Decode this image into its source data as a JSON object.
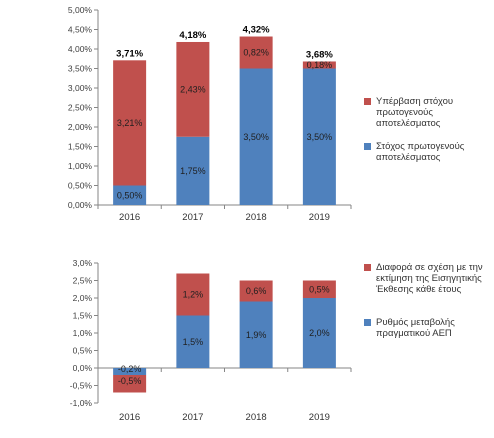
{
  "chart_data": [
    {
      "type": "bar",
      "stacked": true,
      "categories": [
        "2016",
        "2017",
        "2018",
        "2019"
      ],
      "series": [
        {
          "name": "Στόχος πρωτογενούς αποτελέσματος",
          "color": "#4f81bd",
          "values": [
            0.5,
            1.75,
            3.5,
            3.5
          ],
          "labels": [
            "0,50%",
            "1,75%",
            "3,50%",
            "3,50%"
          ]
        },
        {
          "name": "Υπέρβαση στόχου πρωτογενούς αποτελέσματος",
          "color": "#c0504d",
          "values": [
            3.21,
            2.43,
            0.82,
            0.18
          ],
          "labels": [
            "3,21%",
            "2,43%",
            "0,82%",
            "0,18%"
          ]
        }
      ],
      "totals": [
        "3,71%",
        "4,18%",
        "4,32%",
        "3,68%"
      ],
      "ylim": [
        0,
        5.0
      ],
      "yticks": [
        "0,00%",
        "0,50%",
        "1,00%",
        "1,50%",
        "2,00%",
        "2,50%",
        "3,00%",
        "3,50%",
        "4,00%",
        "4,50%",
        "5,00%"
      ],
      "grid": false,
      "legend_position": "right"
    },
    {
      "type": "bar",
      "stacked": true,
      "categories": [
        "2016",
        "2017",
        "2018",
        "2019"
      ],
      "series": [
        {
          "name": "Ρυθμός μεταβολής πραγματικού ΑΕΠ",
          "color": "#4f81bd",
          "values": [
            -0.2,
            1.5,
            1.9,
            2.0
          ],
          "labels": [
            "-0,2%",
            "1,5%",
            "1,9%",
            "2,0%"
          ]
        },
        {
          "name": "Διαφορά σε σχέση με την εκτίμηση της Εισηγητικής Έκθεσης κάθε έτους",
          "color": "#c0504d",
          "values": [
            -0.5,
            1.2,
            0.6,
            0.5
          ],
          "labels": [
            "-0,5%",
            "1,2%",
            "0,6%",
            "0,5%"
          ]
        }
      ],
      "ylim": [
        -1.0,
        3.0
      ],
      "yticks": [
        "-1,0%",
        "-0,5%",
        "0,0%",
        "0,5%",
        "1,0%",
        "1,5%",
        "2,0%",
        "2,5%",
        "3,0%"
      ],
      "grid": false,
      "legend_position": "right"
    }
  ]
}
